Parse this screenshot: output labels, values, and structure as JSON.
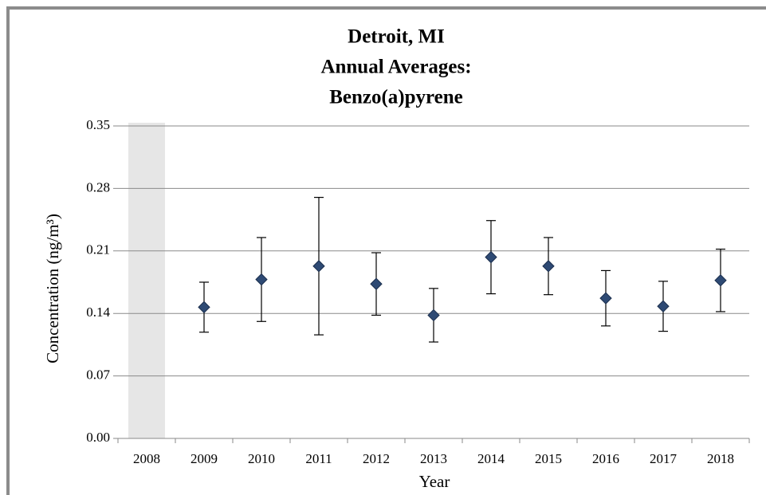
{
  "chart_data": {
    "type": "scatter",
    "title": [
      "Detroit, MI",
      "Annual Averages:",
      "Benzo(a)pyrene"
    ],
    "x_label": "Year",
    "y_label": "Concentration (ng/m³)",
    "categories": [
      "2008",
      "2009",
      "2010",
      "2011",
      "2012",
      "2013",
      "2014",
      "2015",
      "2016",
      "2017",
      "2018"
    ],
    "values": [
      null,
      0.147,
      0.178,
      0.193,
      0.173,
      0.138,
      0.203,
      0.193,
      0.157,
      0.148,
      0.177
    ],
    "errors": [
      null,
      0.028,
      0.047,
      0.077,
      0.035,
      0.03,
      0.041,
      0.032,
      0.031,
      0.028,
      0.035
    ],
    "color": "#2e4a74",
    "ylim": [
      0,
      0.35
    ],
    "yticks": [
      {
        "value": 0,
        "label": "0.00"
      },
      0.07,
      0.14,
      0.21,
      0.28,
      0.35
    ],
    "grid": true
  }
}
